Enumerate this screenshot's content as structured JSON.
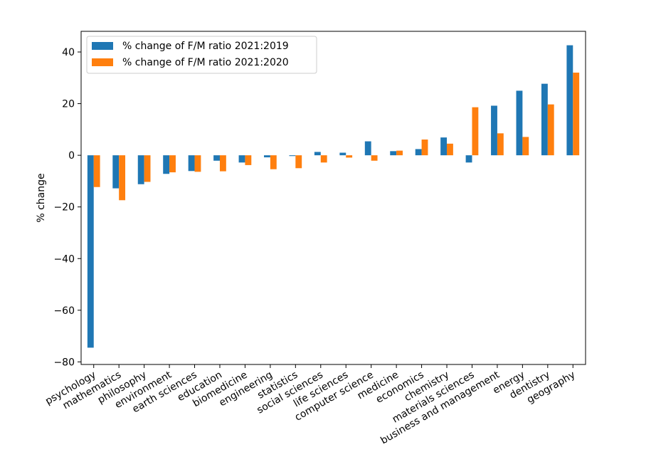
{
  "chart_data": {
    "type": "bar",
    "title": "",
    "xlabel": "",
    "ylabel": "% change",
    "ylim": [
      -81,
      48
    ],
    "yticks": [
      -80,
      -60,
      -40,
      -20,
      0,
      20,
      40
    ],
    "grid": false,
    "legend_position": "top-left",
    "categories": [
      "psychology",
      "mathematics",
      "philosophy",
      "environment",
      "earth sciences",
      "education",
      "biomedicine",
      "engineering",
      "statistics",
      "social sciences",
      "life sciences",
      "computer science",
      "medicine",
      "economics",
      "chemistry",
      "materials sciences",
      "business and management",
      "energy",
      "dentistry",
      "geography"
    ],
    "series": [
      {
        "name": "% change of F/M ratio 2021:2019",
        "color": "#1f77b4",
        "values": [
          -74.5,
          -12.8,
          -11.2,
          -7.2,
          -6.1,
          -2.1,
          -2.8,
          -0.8,
          -0.3,
          1.3,
          1.0,
          5.4,
          1.6,
          2.4,
          6.9,
          -2.8,
          19.2,
          25.0,
          27.7,
          42.6
        ]
      },
      {
        "name": "% change of F/M ratio 2021:2020",
        "color": "#ff7f0e",
        "values": [
          -12.3,
          -17.4,
          -10.3,
          -6.6,
          -6.4,
          -6.2,
          -3.8,
          -5.4,
          -5.0,
          -2.8,
          -0.9,
          -2.1,
          1.8,
          6.1,
          4.5,
          18.6,
          8.5,
          7.1,
          19.7,
          32.0
        ]
      }
    ]
  }
}
